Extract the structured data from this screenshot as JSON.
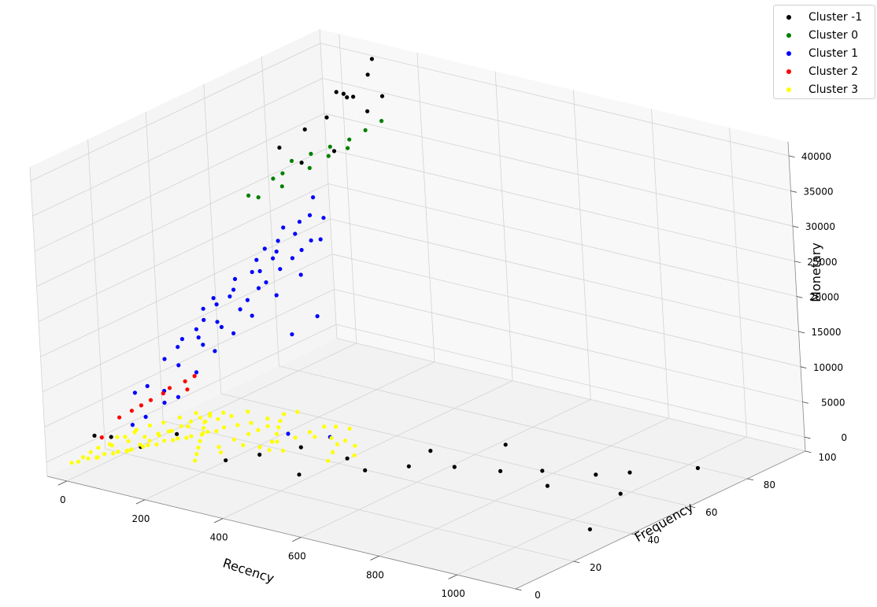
{
  "chart_data": {
    "type": "scatter",
    "projection": "3d",
    "title": "",
    "xlabel": "Recency",
    "ylabel": "Frequency",
    "zlabel": "Monetary",
    "xlim": [
      -50,
      1150
    ],
    "ylim": [
      0,
      100
    ],
    "zlim": [
      -2000,
      42000
    ],
    "x_ticks": [
      "0",
      "200",
      "400",
      "600",
      "800",
      "1000"
    ],
    "y_ticks": [
      "0",
      "20",
      "40",
      "60",
      "80",
      "100"
    ],
    "z_ticks": [
      "0",
      "5000",
      "10000",
      "15000",
      "20000",
      "25000",
      "30000",
      "35000",
      "40000"
    ],
    "grid": true,
    "legend_position": "top-right",
    "series": [
      {
        "name": "Cluster -1",
        "color": "#000000",
        "points": [
          [
            40,
            5,
            4000
          ],
          [
            60,
            8,
            3500
          ],
          [
            120,
            10,
            2500
          ],
          [
            200,
            12,
            5000
          ],
          [
            350,
            20,
            2500
          ],
          [
            420,
            25,
            3500
          ],
          [
            500,
            30,
            2000
          ],
          [
            560,
            28,
            1500
          ],
          [
            620,
            35,
            1500
          ],
          [
            700,
            40,
            1500
          ],
          [
            780,
            45,
            1000
          ],
          [
            850,
            50,
            1000
          ],
          [
            900,
            45,
            500
          ],
          [
            950,
            55,
            800
          ],
          [
            1000,
            60,
            800
          ],
          [
            1050,
            50,
            400
          ],
          [
            1100,
            70,
            800
          ],
          [
            1120,
            30,
            200
          ],
          [
            640,
            40,
            3000
          ],
          [
            720,
            55,
            2000
          ],
          [
            300,
            15,
            2000
          ],
          [
            450,
            20,
            1000
          ],
          [
            100,
            85,
            38000
          ],
          [
            120,
            88,
            37000
          ],
          [
            80,
            90,
            36500
          ],
          [
            110,
            80,
            35500
          ],
          [
            150,
            82,
            38500
          ],
          [
            130,
            92,
            39500
          ],
          [
            90,
            75,
            34500
          ],
          [
            170,
            86,
            36000
          ],
          [
            60,
            70,
            32500
          ],
          [
            140,
            78,
            31500
          ],
          [
            100,
            72,
            30500
          ],
          [
            120,
            95,
            41000
          ],
          [
            180,
            90,
            37500
          ]
        ]
      },
      {
        "name": "Cluster 0",
        "color": "#008000",
        "points": [
          [
            90,
            70,
            31000
          ],
          [
            110,
            74,
            31500
          ],
          [
            130,
            78,
            32000
          ],
          [
            150,
            82,
            32500
          ],
          [
            70,
            66,
            29000
          ],
          [
            50,
            60,
            27500
          ],
          [
            170,
            85,
            33500
          ],
          [
            120,
            72,
            30000
          ],
          [
            80,
            68,
            29500
          ],
          [
            160,
            80,
            31800
          ],
          [
            140,
            76,
            31200
          ],
          [
            100,
            65,
            28500
          ],
          [
            60,
            62,
            27000
          ],
          [
            190,
            88,
            34500
          ]
        ]
      },
      {
        "name": "Cluster 1",
        "color": "#0000ff",
        "points": [
          [
            60,
            45,
            16000
          ],
          [
            80,
            50,
            18000
          ],
          [
            100,
            55,
            20000
          ],
          [
            120,
            60,
            22000
          ],
          [
            140,
            65,
            24000
          ],
          [
            70,
            40,
            14000
          ],
          [
            90,
            48,
            17000
          ],
          [
            110,
            52,
            19000
          ],
          [
            130,
            58,
            21000
          ],
          [
            150,
            62,
            23000
          ],
          [
            50,
            35,
            12000
          ],
          [
            40,
            30,
            10000
          ],
          [
            60,
            32,
            9000
          ],
          [
            80,
            38,
            11000
          ],
          [
            100,
            42,
            13000
          ],
          [
            120,
            46,
            15000
          ],
          [
            140,
            50,
            17500
          ],
          [
            160,
            55,
            19500
          ],
          [
            180,
            60,
            21500
          ],
          [
            30,
            25,
            7000
          ],
          [
            50,
            28,
            6000
          ],
          [
            70,
            30,
            5000
          ],
          [
            90,
            34,
            8000
          ],
          [
            110,
            38,
            10500
          ],
          [
            130,
            42,
            12500
          ],
          [
            150,
            46,
            14500
          ],
          [
            170,
            52,
            16500
          ],
          [
            190,
            58,
            18500
          ],
          [
            160,
            66,
            25000
          ],
          [
            140,
            70,
            26500
          ],
          [
            120,
            62,
            23500
          ],
          [
            100,
            58,
            21000
          ],
          [
            200,
            64,
            22500
          ],
          [
            180,
            68,
            24500
          ],
          [
            60,
            20,
            4000
          ],
          [
            40,
            18,
            3000
          ],
          [
            80,
            24,
            5500
          ],
          [
            350,
            30,
            3500
          ],
          [
            420,
            35,
            3000
          ],
          [
            220,
            50,
            12000
          ],
          [
            250,
            55,
            14000
          ],
          [
            20,
            22,
            6500
          ],
          [
            75,
            44,
            15500
          ],
          [
            95,
            46,
            16500
          ],
          [
            115,
            54,
            18800
          ],
          [
            135,
            56,
            20500
          ],
          [
            85,
            36,
            12500
          ],
          [
            105,
            40,
            14200
          ],
          [
            125,
            48,
            16000
          ],
          [
            145,
            52,
            18000
          ],
          [
            65,
            38,
            13000
          ],
          [
            55,
            42,
            15000
          ],
          [
            155,
            60,
            20000
          ],
          [
            175,
            64,
            22000
          ],
          [
            45,
            34,
            11000
          ]
        ]
      },
      {
        "name": "Cluster 2",
        "color": "#ff0000",
        "points": [
          [
            30,
            15,
            4500
          ],
          [
            50,
            20,
            5500
          ],
          [
            70,
            25,
            6500
          ],
          [
            90,
            30,
            7500
          ],
          [
            110,
            28,
            7000
          ],
          [
            40,
            18,
            5000
          ],
          [
            60,
            22,
            6000
          ],
          [
            80,
            26,
            7200
          ],
          [
            20,
            10,
            2500
          ],
          [
            100,
            32,
            8000
          ]
        ]
      },
      {
        "name": "Cluster 3",
        "color": "#ffff00",
        "points": [
          [
            20,
            5,
            500
          ],
          [
            40,
            8,
            800
          ],
          [
            60,
            10,
            1000
          ],
          [
            80,
            12,
            1200
          ],
          [
            100,
            15,
            1500
          ],
          [
            120,
            18,
            1800
          ],
          [
            140,
            20,
            2000
          ],
          [
            160,
            22,
            2200
          ],
          [
            180,
            25,
            2500
          ],
          [
            200,
            28,
            2800
          ],
          [
            220,
            30,
            3000
          ],
          [
            240,
            32,
            3200
          ],
          [
            260,
            35,
            3500
          ],
          [
            280,
            38,
            3800
          ],
          [
            300,
            40,
            4000
          ],
          [
            30,
            12,
            1100
          ],
          [
            50,
            15,
            1400
          ],
          [
            70,
            18,
            1700
          ],
          [
            90,
            20,
            2000
          ],
          [
            110,
            22,
            2300
          ],
          [
            130,
            25,
            2600
          ],
          [
            150,
            28,
            2900
          ],
          [
            170,
            30,
            3200
          ],
          [
            190,
            32,
            3500
          ],
          [
            210,
            35,
            3800
          ],
          [
            10,
            3,
            300
          ],
          [
            35,
            6,
            600
          ],
          [
            55,
            9,
            900
          ],
          [
            75,
            11,
            1100
          ],
          [
            95,
            14,
            1400
          ],
          [
            115,
            16,
            1600
          ],
          [
            135,
            19,
            1900
          ],
          [
            155,
            21,
            2100
          ],
          [
            175,
            24,
            2400
          ],
          [
            195,
            26,
            2600
          ],
          [
            320,
            30,
            2000
          ],
          [
            350,
            28,
            1500
          ],
          [
            380,
            35,
            2500
          ],
          [
            400,
            38,
            2000
          ],
          [
            420,
            40,
            1500
          ],
          [
            450,
            30,
            1000
          ],
          [
            480,
            35,
            1200
          ],
          [
            250,
            20,
            1500
          ],
          [
            270,
            25,
            1800
          ],
          [
            290,
            28,
            1200
          ],
          [
            0,
            2,
            200
          ],
          [
            25,
            8,
            1500
          ],
          [
            45,
            12,
            2500
          ],
          [
            65,
            16,
            3000
          ],
          [
            85,
            18,
            3500
          ],
          [
            105,
            20,
            3800
          ],
          [
            125,
            23,
            4200
          ],
          [
            145,
            26,
            4500
          ],
          [
            165,
            28,
            4000
          ],
          [
            185,
            30,
            4300
          ],
          [
            15,
            4,
            800
          ],
          [
            20,
            6,
            1200
          ],
          [
            30,
            7,
            400
          ],
          [
            40,
            10,
            1800
          ],
          [
            50,
            14,
            2200
          ],
          [
            60,
            16,
            2600
          ],
          [
            70,
            12,
            900
          ],
          [
            80,
            15,
            1300
          ],
          [
            90,
            17,
            1600
          ],
          [
            100,
            19,
            2100
          ],
          [
            110,
            21,
            2400
          ],
          [
            120,
            24,
            2700
          ],
          [
            130,
            26,
            3100
          ],
          [
            140,
            28,
            3400
          ],
          [
            150,
            30,
            3700
          ],
          [
            160,
            27,
            3300
          ],
          [
            170,
            25,
            2900
          ],
          [
            180,
            23,
            2500
          ],
          [
            190,
            21,
            2100
          ],
          [
            200,
            19,
            1700
          ],
          [
            210,
            17,
            1300
          ],
          [
            220,
            15,
            900
          ],
          [
            230,
            22,
            1600
          ],
          [
            240,
            26,
            2000
          ],
          [
            255,
            29,
            2400
          ],
          [
            265,
            31,
            2700
          ],
          [
            275,
            33,
            3000
          ],
          [
            285,
            36,
            3300
          ],
          [
            295,
            34,
            2900
          ],
          [
            305,
            32,
            2500
          ],
          [
            315,
            29,
            2100
          ],
          [
            330,
            26,
            1700
          ],
          [
            345,
            33,
            2300
          ],
          [
            360,
            36,
            2700
          ],
          [
            375,
            39,
            3100
          ],
          [
            390,
            41,
            2900
          ],
          [
            410,
            43,
            2500
          ],
          [
            430,
            36,
            1900
          ],
          [
            440,
            33,
            1500
          ],
          [
            460,
            38,
            1700
          ]
        ]
      }
    ]
  },
  "legend": {
    "items": [
      {
        "label": "Cluster -1",
        "color": "#000000"
      },
      {
        "label": "Cluster 0",
        "color": "#008000"
      },
      {
        "label": "Cluster 1",
        "color": "#0000ff"
      },
      {
        "label": "Cluster 2",
        "color": "#ff0000"
      },
      {
        "label": "Cluster 3",
        "color": "#ffff00"
      }
    ]
  }
}
